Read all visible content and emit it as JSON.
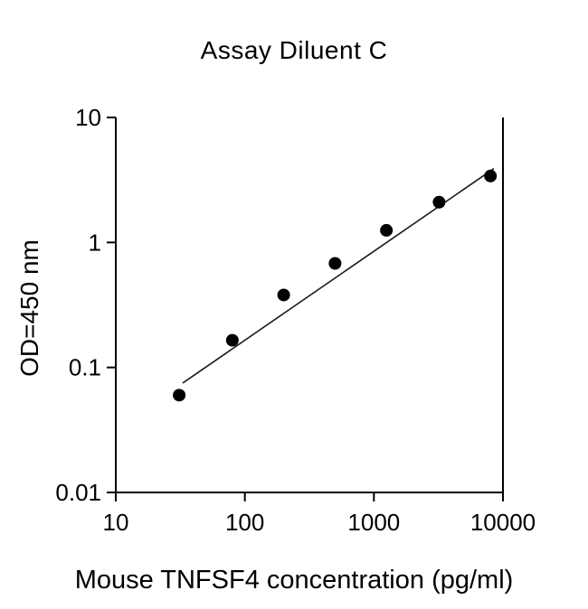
{
  "chart_data": {
    "type": "scatter",
    "title": "Assay Diluent C",
    "xlabel": "Mouse TNFSF4 concentration (pg/ml)",
    "ylabel": "OD=450 nm",
    "xscale": "log",
    "yscale": "log",
    "xlim": [
      10,
      10000
    ],
    "ylim": [
      0.01,
      10
    ],
    "xticks": [
      10,
      100,
      1000,
      10000
    ],
    "yticks": [
      10,
      1,
      0.1,
      0.01
    ],
    "grid": false,
    "legend": null,
    "marker_color": "#000000",
    "line_color": "#1a1a1a",
    "points": {
      "x": [
        31,
        80,
        200,
        500,
        1250,
        3200,
        8000
      ],
      "y": [
        0.06,
        0.165,
        0.38,
        0.68,
        1.25,
        2.1,
        3.4
      ]
    },
    "trendline": {
      "x": [
        33,
        8500
      ],
      "y": [
        0.075,
        3.9
      ]
    }
  }
}
